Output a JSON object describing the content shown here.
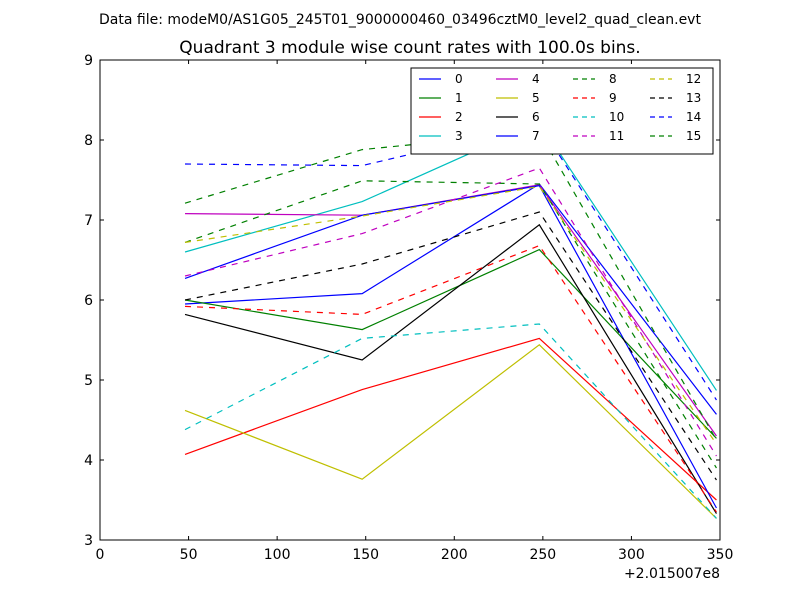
{
  "chart_data": {
    "type": "line",
    "suptitle": "Data file: modeM0/AS1G05_245T01_9000000460_03496cztM0_level2_quad_clean.evt",
    "title": "Quadrant 3 module wise count rates with 100.0s bins.",
    "xlabel": "",
    "ylabel": "",
    "x_offset_label": "+2.015007e8",
    "xlim": [
      0,
      350
    ],
    "ylim": [
      3,
      9
    ],
    "xticks": [
      0,
      50,
      100,
      150,
      200,
      250,
      300,
      350
    ],
    "xtick_labels": [
      "0",
      "50",
      "100",
      "150",
      "200",
      "250",
      "300",
      "350"
    ],
    "yticks": [
      3,
      4,
      5,
      6,
      7,
      8,
      9
    ],
    "ytick_labels": [
      "3",
      "4",
      "5",
      "6",
      "7",
      "8",
      "9"
    ],
    "legend_position": "top-right",
    "x": [
      48,
      148,
      248,
      348
    ],
    "series": [
      {
        "name": "0",
        "color": "#0000ff",
        "dash": false,
        "values": [
          5.95,
          6.08,
          7.45,
          4.57
        ]
      },
      {
        "name": "1",
        "color": "#008000",
        "dash": false,
        "values": [
          6.0,
          5.63,
          6.63,
          4.27
        ]
      },
      {
        "name": "2",
        "color": "#ff0000",
        "dash": false,
        "values": [
          4.07,
          4.88,
          5.52,
          3.5
        ]
      },
      {
        "name": "3",
        "color": "#00bfbf",
        "dash": false,
        "values": [
          6.6,
          7.23,
          8.22,
          4.87
        ]
      },
      {
        "name": "4",
        "color": "#bf00bf",
        "dash": false,
        "values": [
          7.08,
          7.06,
          7.44,
          4.3
        ]
      },
      {
        "name": "5",
        "color": "#bfbf00",
        "dash": false,
        "values": [
          4.62,
          3.76,
          5.44,
          3.27
        ]
      },
      {
        "name": "6",
        "color": "#000000",
        "dash": false,
        "values": [
          5.82,
          5.25,
          6.94,
          3.33
        ]
      },
      {
        "name": "7",
        "color": "#0000ff",
        "dash": false,
        "values": [
          6.27,
          7.06,
          7.43,
          3.4
        ]
      },
      {
        "name": "8",
        "color": "#008000",
        "dash": true,
        "values": [
          6.72,
          7.49,
          7.45,
          3.9
        ]
      },
      {
        "name": "9",
        "color": "#ff0000",
        "dash": true,
        "values": [
          5.92,
          5.82,
          6.68,
          3.35
        ]
      },
      {
        "name": "10",
        "color": "#00bfbf",
        "dash": true,
        "values": [
          4.38,
          5.52,
          5.7,
          3.27
        ]
      },
      {
        "name": "11",
        "color": "#bf00bf",
        "dash": true,
        "values": [
          6.3,
          6.83,
          7.65,
          4.05
        ]
      },
      {
        "name": "12",
        "color": "#bfbf00",
        "dash": true,
        "values": [
          6.72,
          7.05,
          7.42,
          4.2
        ]
      },
      {
        "name": "13",
        "color": "#000000",
        "dash": true,
        "values": [
          6.0,
          6.45,
          7.1,
          3.75
        ]
      },
      {
        "name": "14",
        "color": "#0000ff",
        "dash": true,
        "values": [
          7.7,
          7.68,
          8.2,
          4.75
        ]
      },
      {
        "name": "15",
        "color": "#008000",
        "dash": true,
        "values": [
          7.21,
          7.88,
          8.1,
          4.25
        ]
      }
    ]
  }
}
